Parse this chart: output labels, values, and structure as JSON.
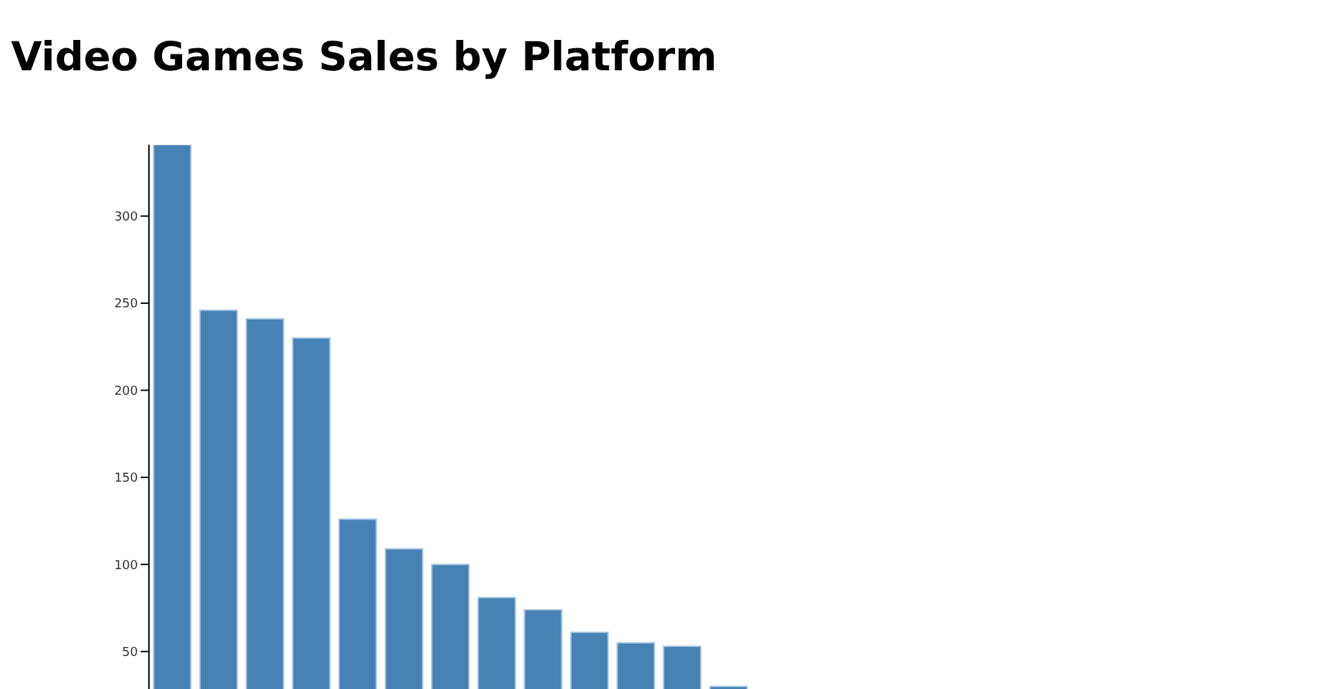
{
  "chart_data": {
    "type": "bar",
    "title": "Video Games Sales by Platform",
    "categories": [
      null,
      null,
      null,
      null,
      null,
      null,
      null,
      null,
      null,
      null,
      null,
      null,
      null
    ],
    "values": [
      341,
      246,
      241,
      230,
      126,
      109,
      100,
      81,
      74,
      61,
      55,
      53,
      30
    ],
    "color": "#4682b4",
    "ylim": [
      0,
      341
    ],
    "yticks": [
      50,
      100,
      150,
      200,
      250,
      300
    ],
    "tick_labels": "y"
  }
}
